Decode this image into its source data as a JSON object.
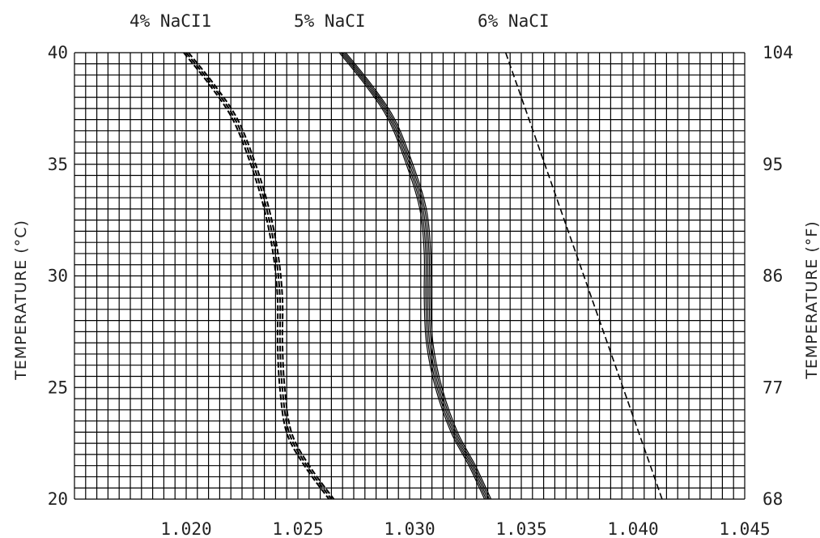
{
  "chart_data": {
    "type": "line",
    "xlabel": "",
    "ylabel": "TEMPERATURE (°C)",
    "ylabel_right": "TEMPERATURE (°F)",
    "xlim": [
      1.015,
      1.045
    ],
    "ylim": [
      20,
      40
    ],
    "x_ticks": [
      "1.020",
      "1.025",
      "1.030",
      "1.035",
      "1.040",
      "1.045"
    ],
    "x_tick_values": [
      1.02,
      1.025,
      1.03,
      1.035,
      1.04,
      1.045
    ],
    "y_ticks_left": [
      "20",
      "25",
      "30",
      "35",
      "40"
    ],
    "y_tick_left_values": [
      20,
      25,
      30,
      35,
      40
    ],
    "y_ticks_right": [
      "68",
      "77",
      "86",
      "95",
      "104"
    ],
    "grid": true,
    "series_labels": [
      "4% NaCI1",
      "5% NaCI",
      "6% NaCI"
    ],
    "series": [
      {
        "name": "4% NaCI1",
        "style": "dashed-bold",
        "points": [
          {
            "x": 1.02,
            "y": 40
          },
          {
            "x": 1.0212,
            "y": 38.5
          },
          {
            "x": 1.0222,
            "y": 37
          },
          {
            "x": 1.023,
            "y": 35
          },
          {
            "x": 1.0236,
            "y": 33
          },
          {
            "x": 1.024,
            "y": 31
          },
          {
            "x": 1.0242,
            "y": 29
          },
          {
            "x": 1.0242,
            "y": 27
          },
          {
            "x": 1.0243,
            "y": 25
          },
          {
            "x": 1.0246,
            "y": 23
          },
          {
            "x": 1.0254,
            "y": 21.5
          },
          {
            "x": 1.0265,
            "y": 20
          }
        ]
      },
      {
        "name": "5% NaCI",
        "style": "solid-multi",
        "points": [
          {
            "x": 1.027,
            "y": 40
          },
          {
            "x": 1.0282,
            "y": 38.5
          },
          {
            "x": 1.0292,
            "y": 37
          },
          {
            "x": 1.03,
            "y": 35
          },
          {
            "x": 1.0306,
            "y": 33
          },
          {
            "x": 1.0308,
            "y": 31
          },
          {
            "x": 1.0308,
            "y": 29
          },
          {
            "x": 1.0309,
            "y": 27
          },
          {
            "x": 1.0313,
            "y": 25
          },
          {
            "x": 1.032,
            "y": 23
          },
          {
            "x": 1.0328,
            "y": 21.5
          },
          {
            "x": 1.0335,
            "y": 20
          }
        ]
      },
      {
        "name": "6% NaCI",
        "style": "dashed-thin",
        "points": [
          {
            "x": 1.0343,
            "y": 40
          },
          {
            "x": 1.0413,
            "y": 20
          }
        ]
      }
    ]
  }
}
